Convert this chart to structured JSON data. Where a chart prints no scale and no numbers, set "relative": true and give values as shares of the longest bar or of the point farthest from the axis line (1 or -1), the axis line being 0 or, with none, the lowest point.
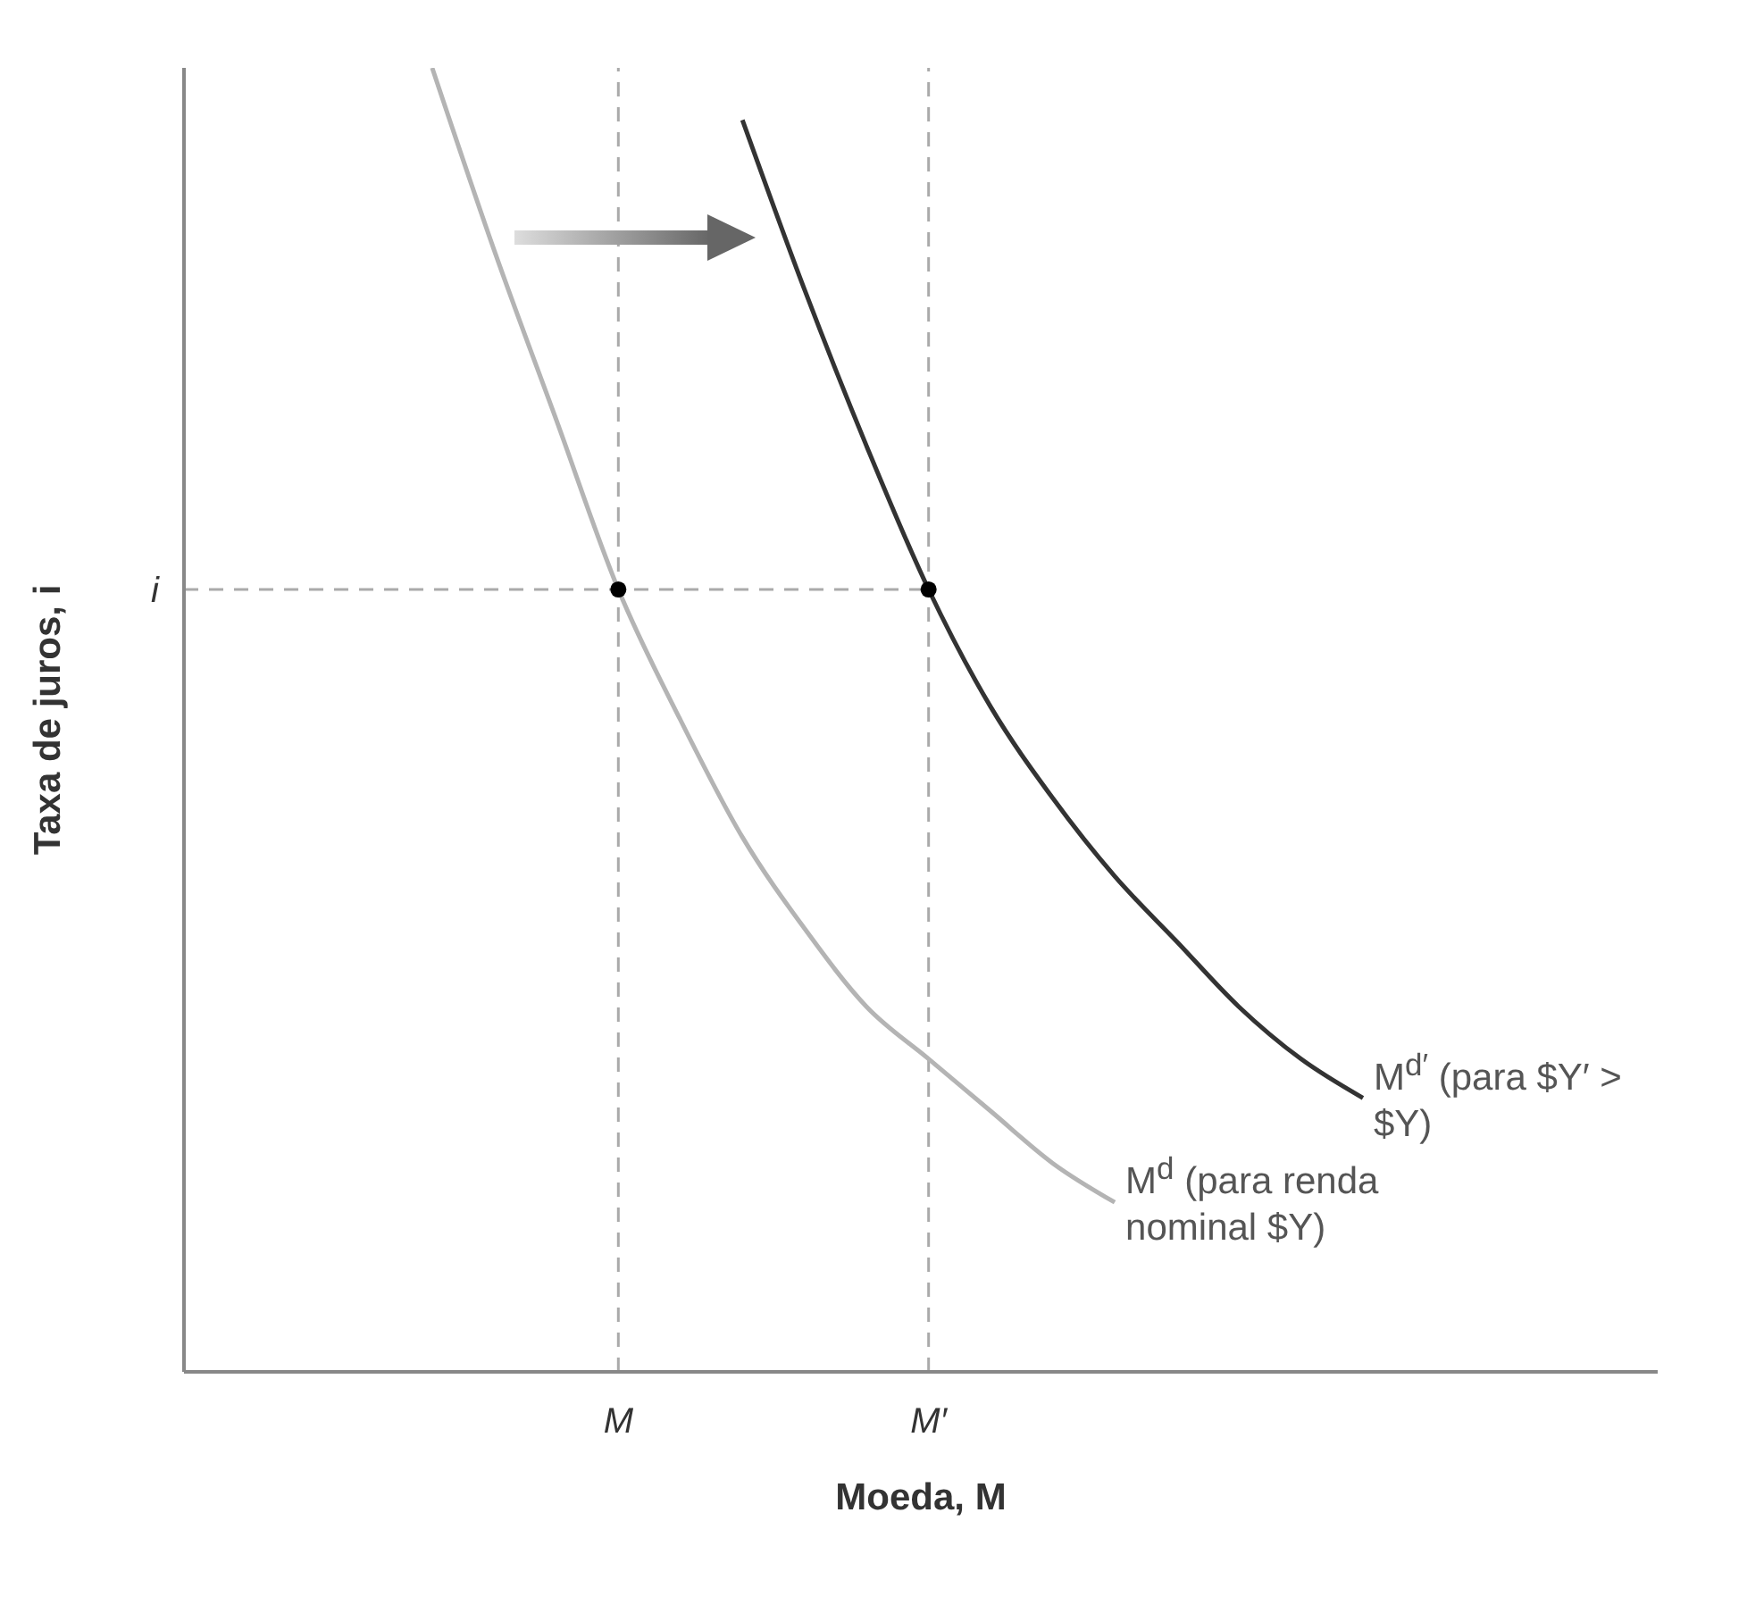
{
  "chart_data": {
    "type": "line",
    "xlabel": "Moeda, M",
    "ylabel": "Taxa de juros, i",
    "relative": true,
    "legend": false,
    "grid": false,
    "line_style": "solid",
    "categories": [
      null,
      null,
      null,
      null,
      null,
      null,
      null,
      "M",
      null,
      null,
      null,
      null,
      "M′",
      null,
      null,
      null,
      null,
      null,
      null,
      null,
      null,
      null,
      null,
      null
    ],
    "series": [
      {
        "name": "M$^{d}$ (para renda nominal $Y)",
        "color": "#b4b4b4",
        "values": [
          null,
          null,
          null,
          null,
          1.0,
          0.86,
          0.73,
          0.6,
          0.5,
          0.41,
          0.34,
          0.28,
          0.24,
          0.2,
          0.16,
          0.13,
          null,
          null,
          null,
          null,
          null,
          null,
          null,
          null
        ]
      },
      {
        "name": "M$^{d′}$ (para $Y′ > $Y)",
        "color": "#333333",
        "values": [
          null,
          null,
          null,
          null,
          null,
          null,
          null,
          null,
          null,
          0.96,
          0.83,
          0.71,
          0.6,
          0.51,
          0.44,
          0.38,
          0.33,
          0.28,
          0.24,
          0.21,
          null,
          null,
          null,
          null
        ]
      },
      {
        "type": "scatter",
        "color": "#000000",
        "marker": "circle",
        "x": [
          "M",
          "M′"
        ],
        "values": [
          0.6,
          0.6
        ]
      }
    ],
    "ref_lines": [
      {
        "axis": "y",
        "value": 0.6,
        "label": "i",
        "line_style": "dashed",
        "color": "#aaaaaa"
      },
      {
        "axis": "x",
        "value": "M",
        "line_style": "dashed",
        "color": "#aaaaaa"
      },
      {
        "axis": "x",
        "value": "M′",
        "line_style": "dashed",
        "color": "#aaaaaa"
      }
    ]
  }
}
